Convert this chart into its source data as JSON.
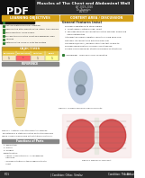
{
  "title": "Muscles of The Chest and Abdominal Wall",
  "subtitle1": "AY 2019-2020",
  "subtitle2": "Dr. Paredes",
  "subtitle3": "8/29/19",
  "pdf_icon_bg": "#1a1a1a",
  "pdf_icon_text": "PDF",
  "pdf_icon_color": "#ffffff",
  "header_bg": "#2c2c2c",
  "page_bg": "#ffffff",
  "left_section_header_bg": "#d4a017",
  "left_section_header_text": "LEARNING OBJECTIVES",
  "right_section_header_bg": "#d4a017",
  "right_section_header_text": "CONTENT AREA / DISCUSSION",
  "table_header_bg": "#d4a017",
  "bullet_color": "#2e7d32",
  "body_text_color": "#222222",
  "footer_bg": "#2c2c2c",
  "footer_text_color": "#ffffff"
}
